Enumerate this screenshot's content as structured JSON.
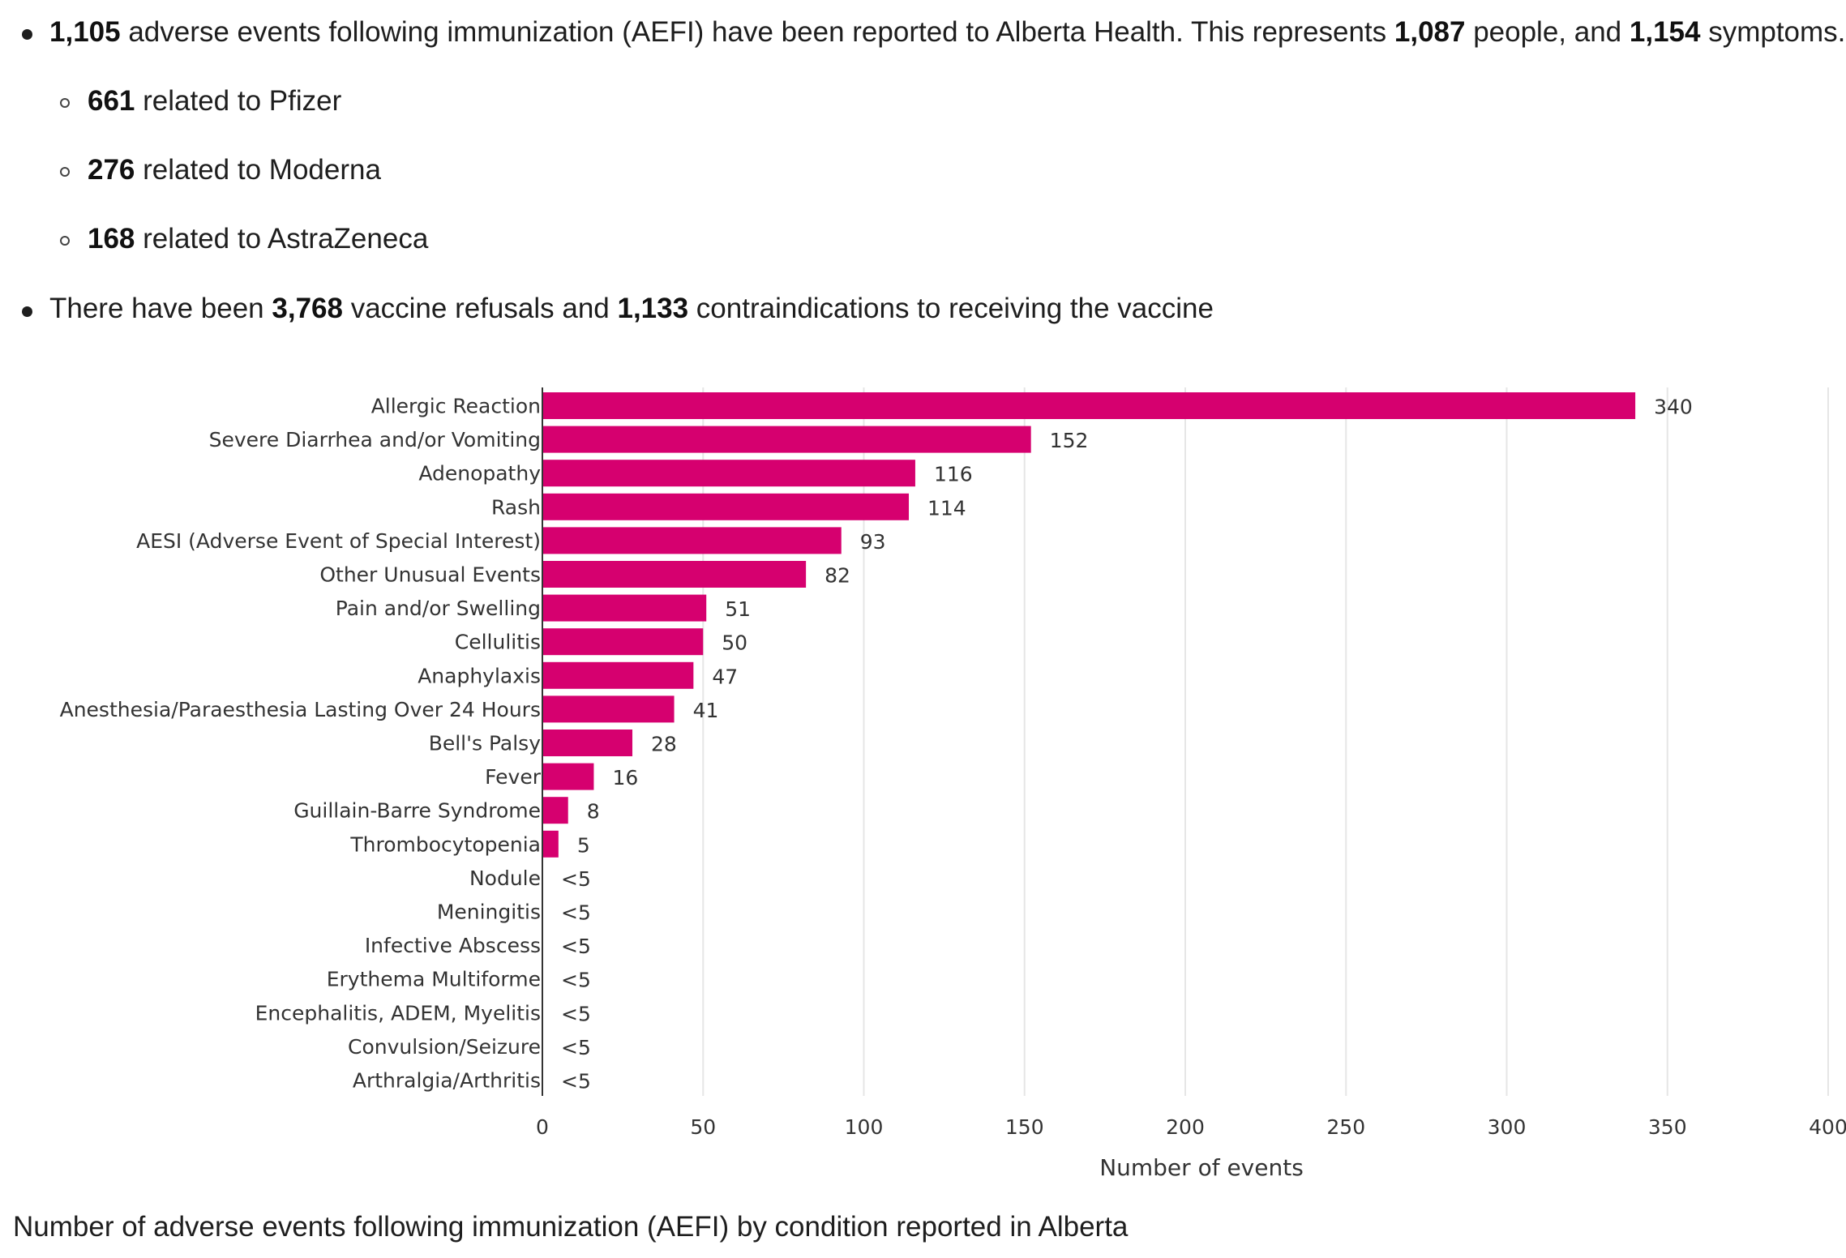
{
  "bullets": {
    "main1": {
      "n1": "1,105",
      "t1": " adverse events following immunization (AEFI) have been reported to Alberta Health. This represents ",
      "n2": "1,087",
      "t2": " people, and ",
      "n3": "1,154",
      "t3": " symptoms."
    },
    "sub": [
      {
        "n": "661",
        "t": " related to Pfizer"
      },
      {
        "n": "276",
        "t": " related to Moderna"
      },
      {
        "n": "168",
        "t": " related to AstraZeneca"
      }
    ],
    "main2": {
      "t0": "There have been ",
      "n1": "3,768",
      "t1": " vaccine refusals and ",
      "n2": "1,133",
      "t2": " contraindications to receiving the vaccine"
    }
  },
  "caption": "Number of adverse events following immunization (AEFI) by condition reported in Alberta",
  "chart_data": {
    "type": "bar",
    "orientation": "horizontal",
    "xlabel": "Number of events",
    "xlim": [
      0,
      400
    ],
    "xticks": [
      "0",
      "50",
      "100",
      "150",
      "200",
      "250",
      "300",
      "350",
      "400"
    ],
    "grid": true,
    "bar_color": "#d6006f",
    "categories": [
      "Allergic Reaction",
      "Severe Diarrhea and/or Vomiting",
      "Adenopathy",
      "Rash",
      "AESI (Adverse Event of Special Interest)",
      "Other Unusual Events",
      "Pain and/or Swelling",
      "Cellulitis",
      "Anaphylaxis",
      "Anesthesia/Paraesthesia Lasting Over 24 Hours",
      "Bell's Palsy",
      "Fever",
      "Guillain-Barre Syndrome",
      "Thrombocytopenia",
      "Nodule",
      "Meningitis",
      "Infective Abscess",
      "Erythema Multiforme",
      "Encephalitis, ADEM, Myelitis",
      "Convulsion/Seizure",
      "Arthralgia/Arthritis"
    ],
    "values": [
      340,
      152,
      116,
      114,
      93,
      82,
      51,
      50,
      47,
      41,
      28,
      16,
      8,
      5,
      0,
      0,
      0,
      0,
      0,
      0,
      0
    ],
    "data_labels": [
      "340",
      "152",
      "116",
      "114",
      "93",
      "82",
      "51",
      "50",
      "47",
      "41",
      "28",
      "16",
      "8",
      "5",
      "<5",
      "<5",
      "<5",
      "<5",
      "<5",
      "<5",
      "<5"
    ]
  }
}
